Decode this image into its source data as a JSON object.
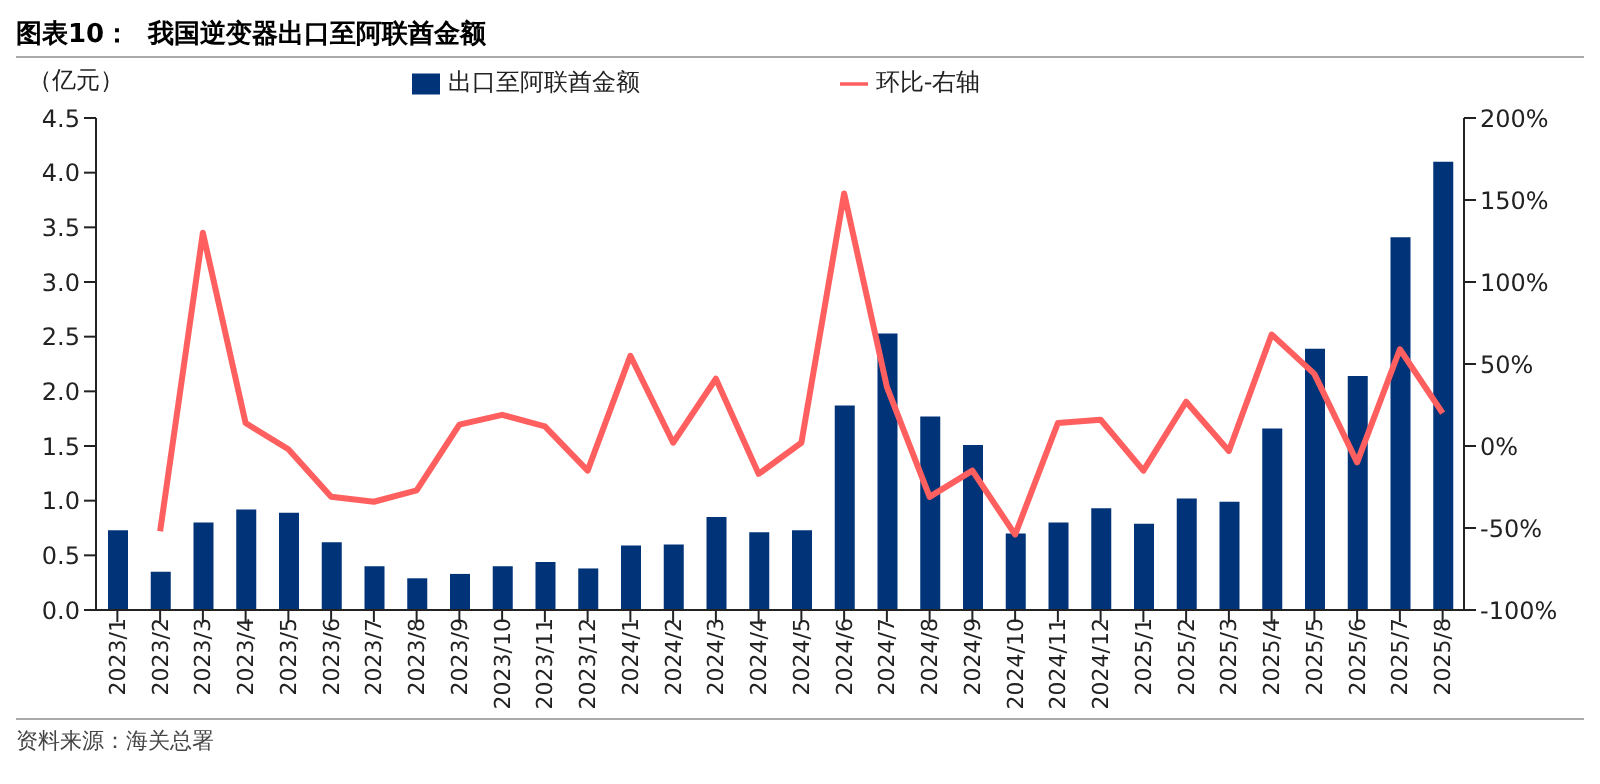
{
  "chart_data": {
    "type": "bar",
    "title": "图表10：  我国逆变器出口至阿联酋金额",
    "ylabel": "（亿元）",
    "annotations": [
      "资料来源：海关总署"
    ],
    "categories": [
      "2023/1",
      "2023/2",
      "2023/3",
      "2023/4",
      "2023/5",
      "2023/6",
      "2023/7",
      "2023/8",
      "2023/9",
      "2023/10",
      "2023/11",
      "2023/12",
      "2024/1",
      "2024/2",
      "2024/3",
      "2024/4",
      "2024/5",
      "2024/6",
      "2024/7",
      "2024/8",
      "2024/9",
      "2024/10",
      "2024/11",
      "2024/12",
      "2025/1",
      "2025/2",
      "2025/3",
      "2025/4",
      "2025/5",
      "2025/6",
      "2025/7",
      "2025/8"
    ],
    "series": [
      {
        "name": "出口至阿联酋金额",
        "color": "#003378",
        "values": [
          0.73,
          0.35,
          0.8,
          0.92,
          0.89,
          0.62,
          0.4,
          0.29,
          0.33,
          0.4,
          0.44,
          0.38,
          0.59,
          0.6,
          0.85,
          0.71,
          0.73,
          1.87,
          2.53,
          1.77,
          1.51,
          0.7,
          0.8,
          0.93,
          0.79,
          1.02,
          0.99,
          1.66,
          2.39,
          2.14,
          3.41,
          4.1
        ]
      },
      {
        "name": "环比-右轴",
        "type": "line",
        "axis": "y2",
        "color": "#ff5f5f",
        "values": [
          null,
          -52,
          130,
          14,
          -2,
          -31,
          -34,
          -27,
          13,
          19,
          12,
          -15,
          55,
          2,
          41,
          -17,
          2,
          154,
          36,
          -31,
          -15,
          -54,
          14,
          16,
          -15,
          27,
          -3,
          68,
          44,
          -10,
          59,
          20
        ]
      }
    ],
    "ylim": [
      0,
      4.5
    ],
    "yticks": [
      {
        "value": 0,
        "label": "0.0"
      },
      {
        "value": 0.5,
        "label": "0.5"
      },
      {
        "value": 1,
        "label": "1.0"
      },
      {
        "value": 1.5,
        "label": "1.5"
      },
      {
        "value": 2,
        "label": "2.0"
      },
      {
        "value": 2.5,
        "label": "2.5"
      },
      {
        "value": 3,
        "label": "3.0"
      },
      {
        "value": 3.5,
        "label": "3.5"
      },
      {
        "value": 4,
        "label": "4.0"
      },
      {
        "value": 4.5,
        "label": "4.5"
      }
    ],
    "y2lim": [
      -100,
      200
    ],
    "y2ticks": [
      {
        "value": -100,
        "label": "-100%"
      },
      {
        "value": -50,
        "label": "-50%"
      },
      {
        "value": 0,
        "label": "0%"
      },
      {
        "value": 50,
        "label": "50%"
      },
      {
        "value": 100,
        "label": "100%"
      },
      {
        "value": 150,
        "label": "150%"
      },
      {
        "value": 200,
        "label": "200%"
      }
    ],
    "grid": false,
    "legend": "top",
    "marker": "none",
    "line_style": "solid"
  }
}
